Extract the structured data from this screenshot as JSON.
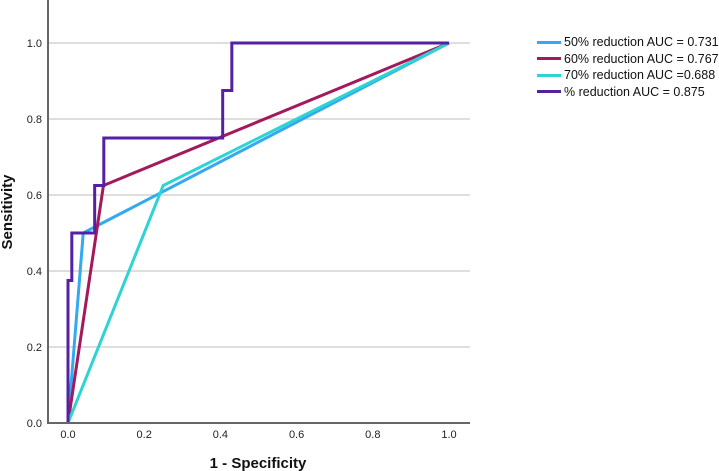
{
  "chart_data": {
    "type": "line",
    "title": "",
    "xlabel": "1 - Specificity",
    "ylabel": "Sensitivity",
    "xlim": [
      -0.053,
      1.055
    ],
    "ylim": [
      0,
      1.113
    ],
    "xticks": [
      "0.0",
      "0.2",
      "0.4",
      "0.6",
      "0.8",
      "1.0"
    ],
    "yticks": [
      "0.0",
      "0.2",
      "0.4",
      "0.6",
      "0.8",
      "1.0"
    ],
    "grid": "horizontal",
    "legend_position": "top-right",
    "series": [
      {
        "name": "50% reduction AUC = 0.731",
        "color": "#33aaf0",
        "x": [
          0,
          0.04,
          1.0
        ],
        "y": [
          0,
          0.5,
          1.0
        ]
      },
      {
        "name": "60% reduction AUC = 0.767",
        "color": "#a3195b",
        "x": [
          0,
          0.093,
          1.0
        ],
        "y": [
          0,
          0.625,
          1.0
        ]
      },
      {
        "name": "70% reduction AUC =0.688",
        "color": "#2ed3d3",
        "x": [
          0,
          0.25,
          1.0
        ],
        "y": [
          0,
          0.625,
          1.0
        ]
      },
      {
        "name": "% reduction AUC = 0.875",
        "color": "#5521a3",
        "x": [
          0,
          0,
          0.01,
          0.01,
          0.07,
          0.07,
          0.094,
          0.094,
          0.406,
          0.406,
          0.43,
          0.43,
          1.0
        ],
        "y": [
          0,
          0.375,
          0.375,
          0.5,
          0.5,
          0.625,
          0.625,
          0.75,
          0.75,
          0.875,
          0.875,
          1.0,
          1.0
        ]
      }
    ]
  }
}
